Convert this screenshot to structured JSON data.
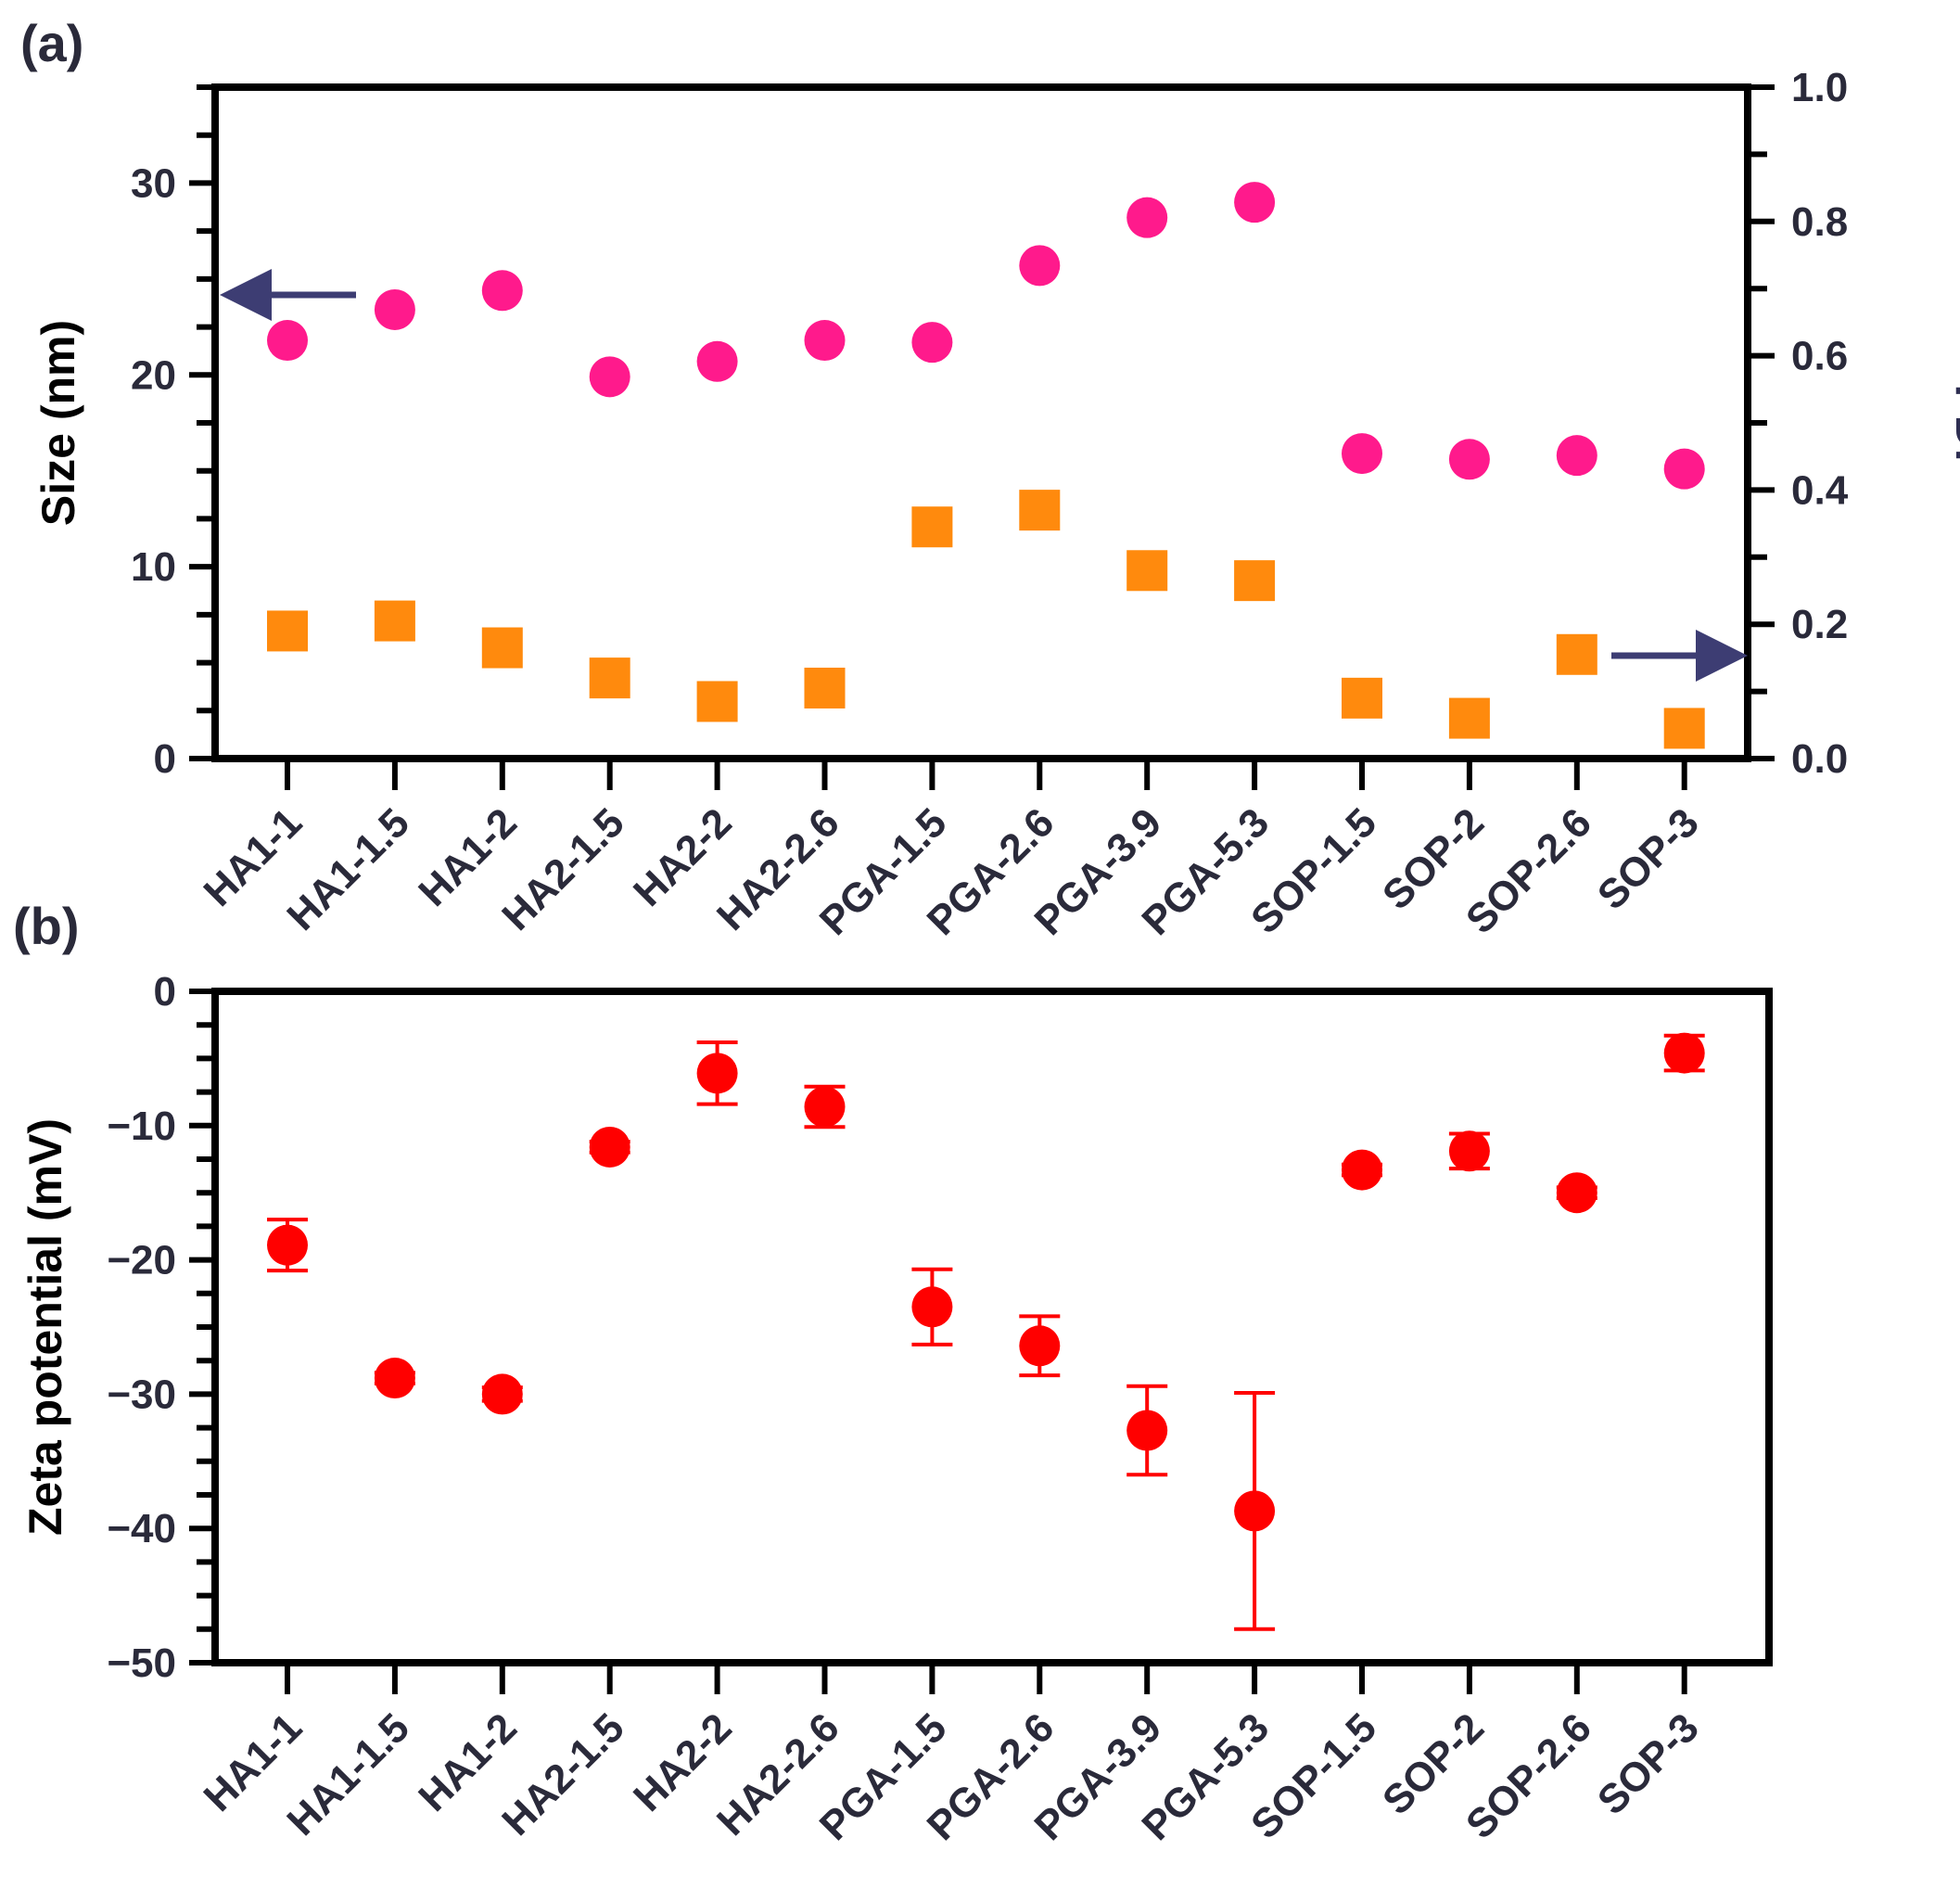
{
  "chart_data": [
    {
      "panel_label": "(a)",
      "type": "scatter",
      "categories": [
        "HA1-1",
        "HA1-1.5",
        "HA1-2",
        "HA2-1.5",
        "HA2-2",
        "HA2-2.6",
        "PGA-1.5",
        "PGA-2.6",
        "PGA-3.9",
        "PGA-5.3",
        "SOP-1.5",
        "SOP-2",
        "SOP-2.6",
        "SOP-3"
      ],
      "ylabel": "Size (nm)",
      "ylim": [
        0,
        35
      ],
      "yticks": [
        "0",
        "10",
        "20",
        "30"
      ],
      "y2label": "PDI",
      "y2lim": [
        0.0,
        1.0
      ],
      "y2ticks": [
        "0.0",
        "0.2",
        "0.4",
        "0.6",
        "0.8",
        "1.0"
      ],
      "series": [
        {
          "name": "Size",
          "axis": "left",
          "marker": "circle",
          "color": "#ff1a8c",
          "values": [
            21.8,
            23.4,
            24.4,
            19.9,
            20.7,
            21.8,
            21.7,
            25.7,
            28.2,
            29.0,
            15.9,
            15.6,
            15.8,
            15.1
          ]
        },
        {
          "name": "PDI",
          "axis": "right",
          "marker": "square",
          "color": "#ff8a0d",
          "values": [
            0.19,
            0.205,
            0.165,
            0.12,
            0.085,
            0.105,
            0.345,
            0.37,
            0.28,
            0.265,
            0.09,
            0.06,
            0.155,
            0.045
          ]
        }
      ],
      "annotations": [
        "arrow pointing to left axis (Size)",
        "arrow pointing to right axis (PDI)"
      ],
      "arrow_color": "#3d3d73"
    },
    {
      "panel_label": "(b)",
      "type": "scatter",
      "categories": [
        "HA1-1",
        "HA1-1.5",
        "HA1-2",
        "HA2-1.5",
        "HA2-2",
        "HA2-2.6",
        "PGA-1.5",
        "PGA-2.6",
        "PGA-3.9",
        "PGA-5.3",
        "SOP-1.5",
        "SOP-2",
        "SOP-2.6",
        "SOP-3"
      ],
      "ylabel": "Zeta potential (mV)",
      "ylim": [
        -50,
        0
      ],
      "yticks": [
        "0",
        "−10",
        "−20",
        "−30",
        "−40",
        "−50"
      ],
      "series": [
        {
          "name": "Zeta potential",
          "marker": "circle",
          "color": "#ff0000",
          "values": [
            -18.9,
            -28.8,
            -30.0,
            -11.6,
            -6.1,
            -8.6,
            -23.5,
            -26.4,
            -32.7,
            -38.7,
            -13.3,
            -11.9,
            -15.0,
            -4.6
          ],
          "errors": [
            1.9,
            0.4,
            0.5,
            0.4,
            2.3,
            1.5,
            2.8,
            2.2,
            3.3,
            8.8,
            0.4,
            1.3,
            0.4,
            1.3
          ]
        }
      ]
    }
  ]
}
